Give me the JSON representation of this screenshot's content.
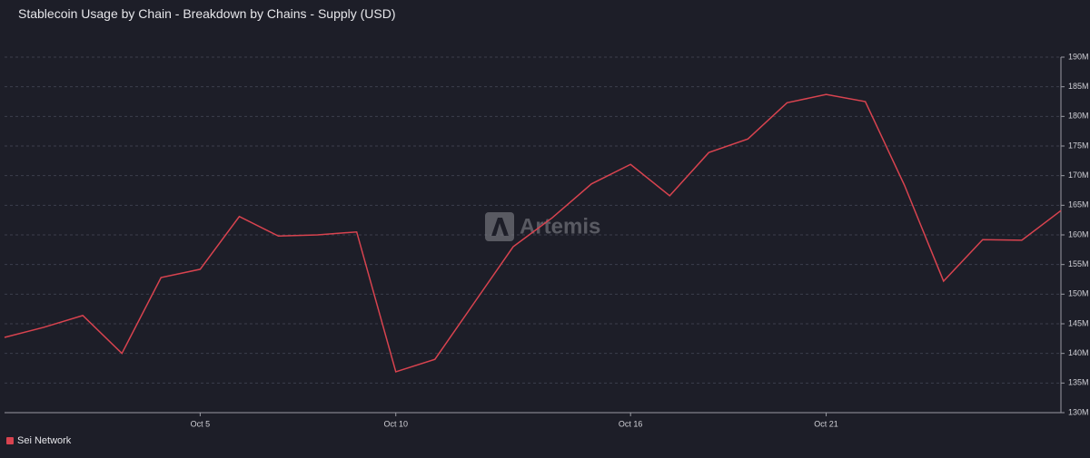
{
  "chart_data": {
    "type": "line",
    "title": "Stablecoin Usage by Chain - Breakdown by Chains - Supply (USD)",
    "watermark": "Artemis",
    "categories": [
      null,
      null,
      null,
      null,
      null,
      "Oct 5",
      null,
      null,
      null,
      null,
      "Oct 10",
      null,
      null,
      null,
      null,
      null,
      "Oct 16",
      null,
      null,
      null,
      null,
      "Oct 21",
      null,
      null,
      null,
      null,
      null,
      null
    ],
    "series": [
      {
        "name": "Sei Network",
        "color": "#d8434f",
        "values": [
          142700000,
          144400000,
          146400000,
          140000000,
          152800000,
          154200000,
          163100000,
          159800000,
          160000000,
          160500000,
          136900000,
          139000000,
          148500000,
          158000000,
          162900000,
          168600000,
          171900000,
          166600000,
          173900000,
          176200000,
          182300000,
          183700000,
          182500000,
          168400000,
          152200000,
          159200000,
          159100000,
          164100000
        ]
      }
    ],
    "ylim": [
      130000000,
      190000000
    ],
    "yticks": [
      {
        "value": 130000000,
        "label": "130M"
      },
      {
        "value": 135000000,
        "label": "135M"
      },
      {
        "value": 140000000,
        "label": "140M"
      },
      {
        "value": 145000000,
        "label": "145M"
      },
      {
        "value": 150000000,
        "label": "150M"
      },
      {
        "value": 155000000,
        "label": "155M"
      },
      {
        "value": 160000000,
        "label": "160M"
      },
      {
        "value": 165000000,
        "label": "165M"
      },
      {
        "value": 170000000,
        "label": "170M"
      },
      {
        "value": 175000000,
        "label": "175M"
      },
      {
        "value": 180000000,
        "label": "180M"
      },
      {
        "value": 185000000,
        "label": "185M"
      },
      {
        "value": 190000000,
        "label": "190M"
      }
    ],
    "grid": true,
    "legend": "bottom-left"
  }
}
